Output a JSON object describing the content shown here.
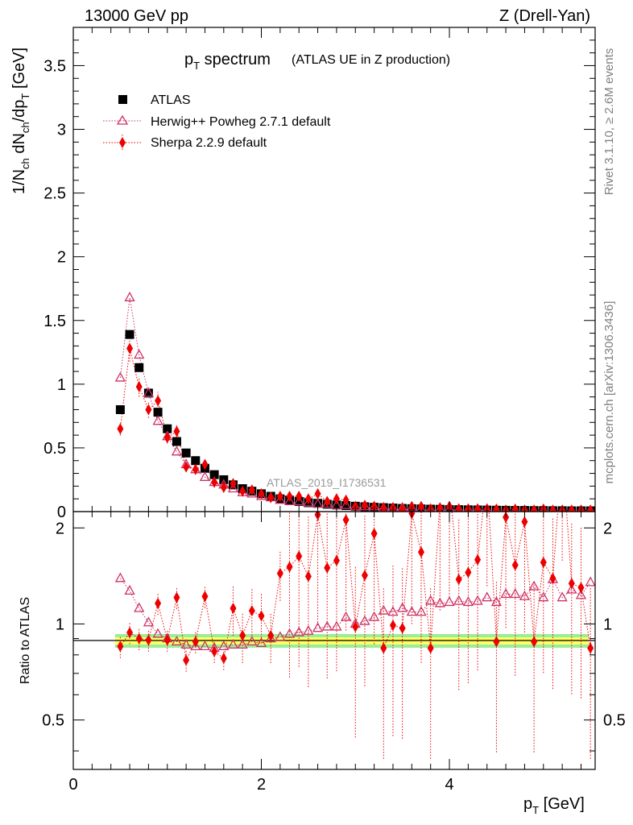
{
  "header": {
    "left": "13000 GeV pp",
    "right": "Z (Drell-Yan)"
  },
  "side": {
    "rivet": "Rivet 3.1.10, ≥ 2.6M events",
    "mcplots": "mcplots.cern.ch [arXiv:1306.3436]"
  },
  "title": {
    "main": "p",
    "main_sub": "T",
    "main_rest": " spectrum",
    "paren": "(ATLAS UE in Z production)"
  },
  "watermark": "ATLAS_2019_I1736531",
  "colors": {
    "atlas": "#000000",
    "herwig": "#cc3366",
    "sherpa": "#ee0000",
    "band_inner": "#ffff66",
    "band_outer": "#99ee99"
  },
  "chart_data": {
    "type": "scatter",
    "top": {
      "ylabel": "1/N_ch dN_ch/dp_T [GeV]",
      "ylim": [
        0,
        3.8
      ],
      "yticks": [
        0,
        0.5,
        1,
        1.5,
        2,
        2.5,
        3,
        3.5
      ],
      "ytick_labels": [
        "0",
        "0.5",
        "1",
        "1.5",
        "2",
        "2.5",
        "3",
        "3.5"
      ]
    },
    "bottom": {
      "ylabel": "Ratio to ATLAS",
      "ylim": [
        0.35,
        2.25
      ],
      "yticks": [
        0.5,
        1,
        2
      ],
      "ytick_labels": [
        "0.5",
        "1",
        "2"
      ]
    },
    "xlabel": "p_T [GeV]",
    "xlim": [
      0,
      5.55
    ],
    "xticks": [
      0,
      2,
      4
    ],
    "xtick_labels": [
      "0",
      "2",
      "4"
    ],
    "x": [
      0.5,
      0.6,
      0.7,
      0.8,
      0.9,
      1.0,
      1.1,
      1.2,
      1.3,
      1.4,
      1.5,
      1.6,
      1.7,
      1.8,
      1.9,
      2.0,
      2.1,
      2.2,
      2.3,
      2.4,
      2.5,
      2.6,
      2.7,
      2.8,
      2.9,
      3.0,
      3.1,
      3.2,
      3.3,
      3.4,
      3.5,
      3.6,
      3.7,
      3.8,
      3.9,
      4.0,
      4.1,
      4.2,
      4.3,
      4.4,
      4.5,
      4.6,
      4.7,
      4.8,
      4.9,
      5.0,
      5.1,
      5.2,
      5.3,
      5.4,
      5.5
    ],
    "legend": [
      "ATLAS",
      "Herwig++ Powheg 2.7.1 default",
      "Sherpa 2.2.9 default"
    ],
    "series": [
      {
        "name": "ATLAS",
        "marker": "square",
        "values": [
          0.8,
          1.39,
          1.13,
          0.93,
          0.78,
          0.65,
          0.55,
          0.46,
          0.4,
          0.34,
          0.29,
          0.25,
          0.21,
          0.18,
          0.16,
          0.14,
          0.12,
          0.1,
          0.09,
          0.08,
          0.07,
          0.065,
          0.058,
          0.052,
          0.047,
          0.042,
          0.038,
          0.034,
          0.031,
          0.028,
          0.025,
          0.023,
          0.021,
          0.019,
          0.018,
          0.016,
          0.015,
          0.014,
          0.013,
          0.012,
          0.011,
          0.01,
          0.009,
          0.009,
          0.008,
          0.008,
          0.007,
          0.007,
          0.006,
          0.006,
          0.006
        ],
        "ratio": [
          1,
          1,
          1,
          1,
          1,
          1,
          1,
          1,
          1,
          1,
          1,
          1,
          1,
          1,
          1,
          1,
          1,
          1,
          1,
          1,
          1,
          1,
          1,
          1,
          1,
          1,
          1,
          1,
          1,
          1,
          1,
          1,
          1,
          1,
          1,
          1,
          1,
          1,
          1,
          1,
          1,
          1,
          1,
          1,
          1,
          1,
          1,
          1,
          1,
          1,
          1
        ]
      },
      {
        "name": "Herwig++ Powheg 2.7.1 default",
        "marker": "open-triangle",
        "values": [
          1.05,
          1.68,
          1.23,
          0.93,
          0.71,
          0.59,
          0.47,
          0.37,
          0.33,
          0.27,
          0.23,
          0.21,
          0.18,
          0.15,
          0.14,
          0.12,
          0.11,
          0.09,
          0.08,
          0.08,
          0.07,
          0.06,
          0.06,
          0.05,
          0.05,
          0.04,
          0.04,
          0.04,
          0.03,
          0.03,
          0.03,
          0.03,
          0.02,
          0.02,
          0.02,
          0.02,
          0.02,
          0.02,
          0.02,
          0.02,
          0.01,
          0.01,
          0.01,
          0.01,
          0.01,
          0.01,
          0.01,
          0.01,
          0.01,
          0.01,
          0.01
        ],
        "ratio": [
          1.39,
          1.27,
          1.12,
          1.01,
          0.93,
          0.9,
          0.88,
          0.86,
          0.85,
          0.85,
          0.84,
          0.85,
          0.86,
          0.86,
          0.88,
          0.87,
          0.9,
          0.91,
          0.93,
          0.94,
          0.95,
          0.97,
          0.98,
          0.98,
          1.05,
          1.0,
          1.02,
          1.05,
          1.1,
          1.09,
          1.12,
          1.09,
          1.09,
          1.18,
          1.16,
          1.17,
          1.18,
          1.17,
          1.18,
          1.21,
          1.17,
          1.24,
          1.24,
          1.22,
          1.31,
          1.21,
          1.38,
          1.21,
          1.28,
          1.23,
          1.35
        ]
      },
      {
        "name": "Sherpa 2.2.9 default",
        "marker": "diamond",
        "values": [
          0.65,
          1.28,
          0.98,
          0.8,
          0.87,
          0.58,
          0.63,
          0.35,
          0.33,
          0.37,
          0.23,
          0.19,
          0.22,
          0.16,
          0.17,
          0.14,
          0.11,
          0.12,
          0.12,
          0.12,
          0.1,
          0.14,
          0.08,
          0.1,
          0.09,
          0.04,
          0.05,
          0.04,
          0.03,
          0.03,
          0.02,
          0.04,
          0.04,
          0.02,
          0.03,
          0.04,
          0.02,
          0.02,
          0.02,
          0.02,
          0.02,
          0.01,
          0.02,
          0.01,
          0.01,
          0.02,
          0.01,
          0.01,
          0.01,
          0.01,
          0.01
        ],
        "ratio": [
          0.85,
          0.94,
          0.9,
          0.89,
          1.16,
          0.89,
          1.21,
          0.77,
          0.88,
          1.22,
          0.82,
          0.78,
          1.12,
          0.92,
          1.1,
          1.06,
          0.92,
          1.44,
          1.51,
          1.63,
          1.41,
          2.2,
          1.5,
          1.58,
          2.12,
          0.98,
          1.42,
          1.92,
          0.84,
          0.99,
          0.97,
          2.22,
          1.68,
          0.84,
          2.45,
          2.7,
          1.38,
          1.45,
          1.59,
          2.92,
          0.88,
          2.16,
          1.53,
          2.09,
          0.88,
          1.56,
          1.39,
          3.51,
          1.34,
          1.3,
          0.84
        ]
      }
    ]
  }
}
